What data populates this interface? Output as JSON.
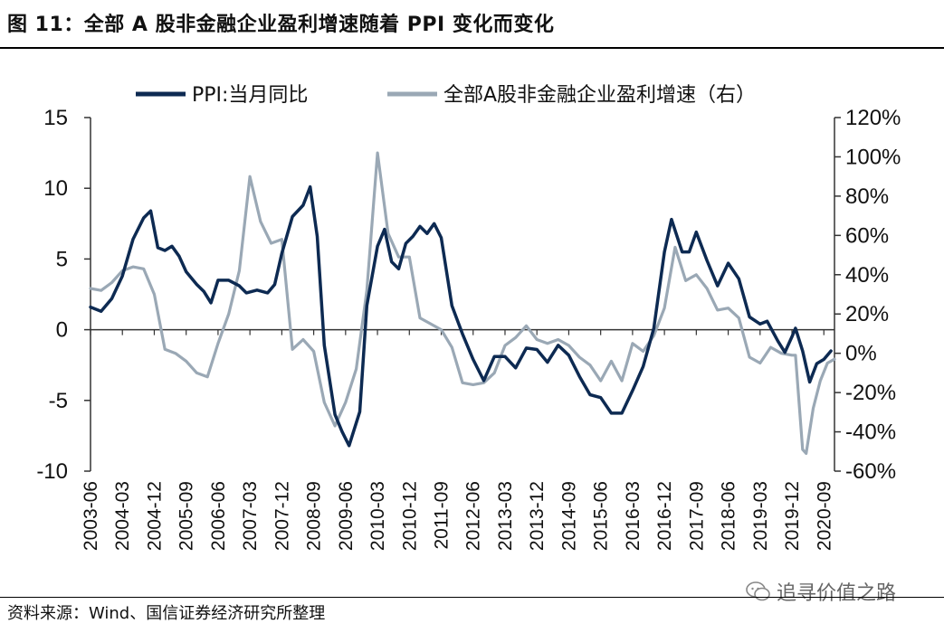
{
  "figure": {
    "title": "图 11：全部 A 股非金融企业盈利增速随着 PPI 变化而变化",
    "source": "资料来源：Wind、国信证券经济研究所整理",
    "watermark": "追寻价值之路"
  },
  "chart_data": {
    "type": "line",
    "title": "",
    "xlabel": "",
    "ylabel": "",
    "y_left": {
      "ylim": [
        -10,
        15
      ],
      "ticks": [
        "15",
        "10",
        "5",
        "0",
        "-5",
        "-10"
      ],
      "tick_values": [
        15,
        10,
        5,
        0,
        -5,
        -10
      ]
    },
    "y_right": {
      "ylim": [
        -60,
        120
      ],
      "ticks": [
        "120%",
        "100%",
        "80%",
        "60%",
        "40%",
        "20%",
        "0%",
        "-20%",
        "-40%",
        "-60%"
      ],
      "tick_values": [
        120,
        100,
        80,
        60,
        40,
        20,
        0,
        -20,
        -40,
        -60
      ]
    },
    "x_ticks": [
      "2003-06",
      "2004-03",
      "2004-12",
      "2005-09",
      "2006-06",
      "2007-03",
      "2007-12",
      "2008-09",
      "2009-06",
      "2010-03",
      "2010-12",
      "2011-09",
      "2012-06",
      "2013-03",
      "2013-12",
      "2014-09",
      "2015-06",
      "2016-03",
      "2016-12",
      "2017-09",
      "2018-06",
      "2019-03",
      "2019-12",
      "2020-09"
    ],
    "x_range": [
      "2003-06",
      "2020-12"
    ],
    "grid": false,
    "legend": {
      "placement": "top",
      "entries": [
        "PPI:当月同比",
        "全部A股非金融企业盈利增速（右）"
      ]
    },
    "colors": {
      "ppi": "#0d2a52",
      "profit": "#9aa8b5",
      "axis": "#333333"
    },
    "series": [
      {
        "name": "PPI:当月同比",
        "axis": "left",
        "points": [
          [
            "2003-06",
            1.6
          ],
          [
            "2003-09",
            1.3
          ],
          [
            "2003-12",
            2.2
          ],
          [
            "2004-03",
            3.8
          ],
          [
            "2004-06",
            6.4
          ],
          [
            "2004-09",
            7.9
          ],
          [
            "2004-11",
            8.4
          ],
          [
            "2005-01",
            5.8
          ],
          [
            "2005-03",
            5.6
          ],
          [
            "2005-05",
            5.9
          ],
          [
            "2005-07",
            5.2
          ],
          [
            "2005-09",
            4.1
          ],
          [
            "2005-12",
            3.2
          ],
          [
            "2006-02",
            2.7
          ],
          [
            "2006-04",
            1.9
          ],
          [
            "2006-06",
            3.5
          ],
          [
            "2006-09",
            3.5
          ],
          [
            "2006-12",
            3.1
          ],
          [
            "2007-02",
            2.6
          ],
          [
            "2007-05",
            2.8
          ],
          [
            "2007-08",
            2.6
          ],
          [
            "2007-10",
            3.2
          ],
          [
            "2007-12",
            5.4
          ],
          [
            "2008-03",
            8.0
          ],
          [
            "2008-06",
            8.8
          ],
          [
            "2008-08",
            10.1
          ],
          [
            "2008-10",
            6.6
          ],
          [
            "2008-12",
            -1.1
          ],
          [
            "2009-03",
            -6.0
          ],
          [
            "2009-05",
            -7.2
          ],
          [
            "2009-07",
            -8.2
          ],
          [
            "2009-10",
            -5.8
          ],
          [
            "2009-12",
            1.7
          ],
          [
            "2010-03",
            5.9
          ],
          [
            "2010-05",
            7.1
          ],
          [
            "2010-07",
            4.8
          ],
          [
            "2010-09",
            4.3
          ],
          [
            "2010-11",
            6.1
          ],
          [
            "2011-01",
            6.6
          ],
          [
            "2011-03",
            7.3
          ],
          [
            "2011-05",
            6.8
          ],
          [
            "2011-07",
            7.5
          ],
          [
            "2011-09",
            6.5
          ],
          [
            "2011-12",
            1.7
          ],
          [
            "2012-03",
            -0.3
          ],
          [
            "2012-06",
            -2.1
          ],
          [
            "2012-09",
            -3.6
          ],
          [
            "2012-12",
            -1.9
          ],
          [
            "2013-03",
            -1.9
          ],
          [
            "2013-06",
            -2.7
          ],
          [
            "2013-09",
            -1.3
          ],
          [
            "2013-12",
            -1.4
          ],
          [
            "2014-03",
            -2.3
          ],
          [
            "2014-06",
            -1.1
          ],
          [
            "2014-09",
            -1.8
          ],
          [
            "2014-12",
            -3.3
          ],
          [
            "2015-03",
            -4.6
          ],
          [
            "2015-06",
            -4.8
          ],
          [
            "2015-09",
            -5.9
          ],
          [
            "2015-12",
            -5.9
          ],
          [
            "2016-03",
            -4.3
          ],
          [
            "2016-06",
            -2.6
          ],
          [
            "2016-09",
            0.1
          ],
          [
            "2016-12",
            5.5
          ],
          [
            "2017-02",
            7.8
          ],
          [
            "2017-05",
            5.5
          ],
          [
            "2017-07",
            5.5
          ],
          [
            "2017-09",
            6.9
          ],
          [
            "2017-12",
            4.9
          ],
          [
            "2018-03",
            3.1
          ],
          [
            "2018-06",
            4.7
          ],
          [
            "2018-09",
            3.6
          ],
          [
            "2018-12",
            0.9
          ],
          [
            "2019-03",
            0.4
          ],
          [
            "2019-05",
            0.6
          ],
          [
            "2019-08",
            -0.8
          ],
          [
            "2019-10",
            -1.6
          ],
          [
            "2019-12",
            -0.5
          ],
          [
            "2020-01",
            0.1
          ],
          [
            "2020-03",
            -1.5
          ],
          [
            "2020-05",
            -3.7
          ],
          [
            "2020-07",
            -2.4
          ],
          [
            "2020-09",
            -2.1
          ],
          [
            "2020-11",
            -1.5
          ]
        ]
      },
      {
        "name": "全部A股非金融企业盈利增速（右）",
        "axis": "right",
        "points": [
          [
            "2003-06",
            33
          ],
          [
            "2003-09",
            32
          ],
          [
            "2003-12",
            36
          ],
          [
            "2004-03",
            42
          ],
          [
            "2004-06",
            44
          ],
          [
            "2004-09",
            43
          ],
          [
            "2004-12",
            30
          ],
          [
            "2005-03",
            2
          ],
          [
            "2005-06",
            0
          ],
          [
            "2005-09",
            -4
          ],
          [
            "2005-12",
            -10
          ],
          [
            "2006-03",
            -12
          ],
          [
            "2006-06",
            5
          ],
          [
            "2006-09",
            20
          ],
          [
            "2006-12",
            42
          ],
          [
            "2007-03",
            90
          ],
          [
            "2007-06",
            67
          ],
          [
            "2007-09",
            56
          ],
          [
            "2007-12",
            58
          ],
          [
            "2008-03",
            2
          ],
          [
            "2008-06",
            7
          ],
          [
            "2008-09",
            1
          ],
          [
            "2008-12",
            -25
          ],
          [
            "2009-03",
            -37
          ],
          [
            "2009-06",
            -25
          ],
          [
            "2009-09",
            -8
          ],
          [
            "2009-12",
            32
          ],
          [
            "2010-03",
            102
          ],
          [
            "2010-06",
            61
          ],
          [
            "2010-09",
            49
          ],
          [
            "2010-12",
            49
          ],
          [
            "2011-03",
            18
          ],
          [
            "2011-06",
            15
          ],
          [
            "2011-09",
            12
          ],
          [
            "2011-12",
            3
          ],
          [
            "2012-03",
            -15
          ],
          [
            "2012-06",
            -16
          ],
          [
            "2012-09",
            -15
          ],
          [
            "2012-12",
            -10
          ],
          [
            "2013-03",
            4
          ],
          [
            "2013-06",
            8
          ],
          [
            "2013-09",
            14
          ],
          [
            "2013-12",
            7
          ],
          [
            "2014-03",
            5
          ],
          [
            "2014-06",
            7
          ],
          [
            "2014-09",
            4
          ],
          [
            "2014-12",
            -2
          ],
          [
            "2015-03",
            -6
          ],
          [
            "2015-06",
            -14
          ],
          [
            "2015-09",
            -4
          ],
          [
            "2015-12",
            -14
          ],
          [
            "2016-03",
            5
          ],
          [
            "2016-06",
            1
          ],
          [
            "2016-09",
            9
          ],
          [
            "2016-12",
            23
          ],
          [
            "2017-03",
            54
          ],
          [
            "2017-06",
            37
          ],
          [
            "2017-09",
            40
          ],
          [
            "2017-12",
            33
          ],
          [
            "2018-03",
            22
          ],
          [
            "2018-06",
            23
          ],
          [
            "2018-09",
            18
          ],
          [
            "2018-12",
            -2
          ],
          [
            "2019-03",
            -5
          ],
          [
            "2019-06",
            3
          ],
          [
            "2019-09",
            0
          ],
          [
            "2019-12",
            -1
          ],
          [
            "2020-01",
            -1
          ],
          [
            "2020-03",
            -49
          ],
          [
            "2020-04",
            -51
          ],
          [
            "2020-06",
            -28
          ],
          [
            "2020-08",
            -14
          ],
          [
            "2020-10",
            -5
          ],
          [
            "2020-12",
            -3
          ]
        ]
      }
    ]
  }
}
